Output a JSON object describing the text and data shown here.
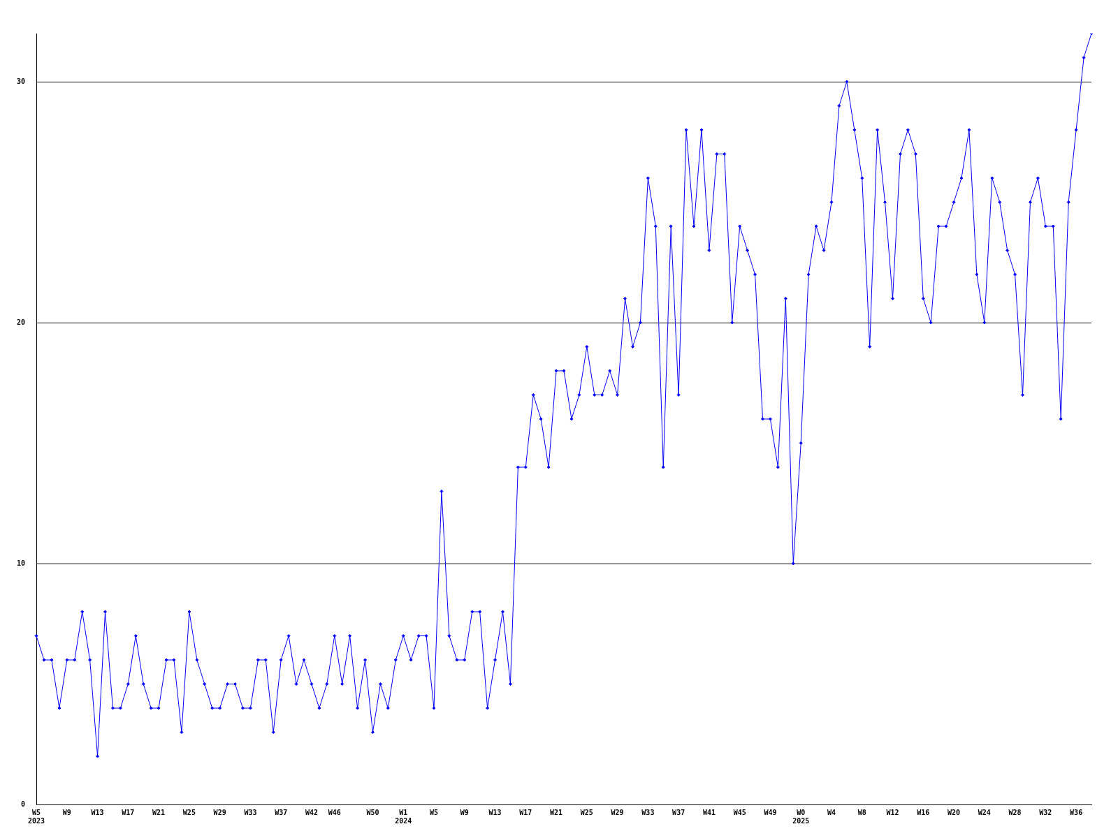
{
  "chart_data": {
    "type": "line",
    "categories": [
      "W5\n2023",
      null,
      null,
      null,
      "W9",
      null,
      null,
      null,
      "W13",
      null,
      null,
      null,
      "W17",
      null,
      null,
      null,
      "W21",
      null,
      null,
      null,
      "W25",
      null,
      null,
      null,
      "W29",
      null,
      null,
      null,
      "W33",
      null,
      null,
      null,
      "W37",
      null,
      null,
      null,
      "W42",
      null,
      null,
      "W46",
      null,
      null,
      null,
      null,
      "W50",
      null,
      null,
      null,
      "W1\n2024",
      null,
      null,
      null,
      "W5",
      null,
      null,
      null,
      "W9",
      null,
      null,
      null,
      "W13",
      null,
      null,
      null,
      "W17",
      null,
      null,
      null,
      "W21",
      null,
      null,
      null,
      "W25",
      null,
      null,
      null,
      "W29",
      null,
      null,
      null,
      "W33",
      null,
      null,
      null,
      "W37",
      null,
      null,
      null,
      "W41",
      null,
      null,
      null,
      "W45",
      null,
      null,
      null,
      "W49",
      null,
      null,
      null,
      "W0\n2025",
      null,
      null,
      null,
      "W4",
      null,
      null,
      null,
      "W8",
      null,
      null,
      null,
      "W12",
      null,
      null,
      null,
      "W16",
      null,
      null,
      null,
      "W20",
      null,
      null,
      null,
      "W24",
      null,
      null,
      null,
      "W28",
      null,
      null,
      null,
      "W32",
      null,
      null,
      null,
      "W36",
      null,
      null
    ],
    "series": [
      {
        "color": "#0000ff",
        "values": [
          7,
          6,
          6,
          4,
          6,
          6,
          8,
          6,
          2,
          8,
          4,
          4,
          5,
          7,
          5,
          4,
          4,
          6,
          6,
          3,
          8,
          6,
          5,
          4,
          4,
          5,
          5,
          4,
          4,
          6,
          6,
          3,
          6,
          7,
          5,
          6,
          5,
          4,
          5,
          7,
          5,
          7,
          4,
          6,
          3,
          5,
          4,
          6,
          7,
          6,
          7,
          7,
          4,
          13,
          7,
          6,
          6,
          8,
          8,
          4,
          6,
          8,
          5,
          14,
          14,
          17,
          16,
          14,
          18,
          18,
          16,
          17,
          19,
          17,
          17,
          18,
          17,
          21,
          19,
          20,
          26,
          24,
          14,
          24,
          17,
          28,
          24,
          28,
          23,
          27,
          27,
          20,
          24,
          23,
          22,
          16,
          16,
          14,
          21,
          10,
          15,
          22,
          24,
          23,
          25,
          29,
          30,
          28,
          26,
          19,
          28,
          25,
          21,
          27,
          28,
          27,
          21,
          20,
          24,
          24,
          25,
          26,
          28,
          22,
          20,
          26,
          25,
          23,
          22,
          17,
          25,
          26,
          24,
          24,
          16,
          25,
          28,
          31,
          32
        ]
      }
    ],
    "ylim": [
      0,
      32
    ],
    "yticks": [
      0,
      10,
      20,
      30
    ],
    "grid": "y",
    "marker": "diamond",
    "line_style": "solid",
    "legend": false
  }
}
